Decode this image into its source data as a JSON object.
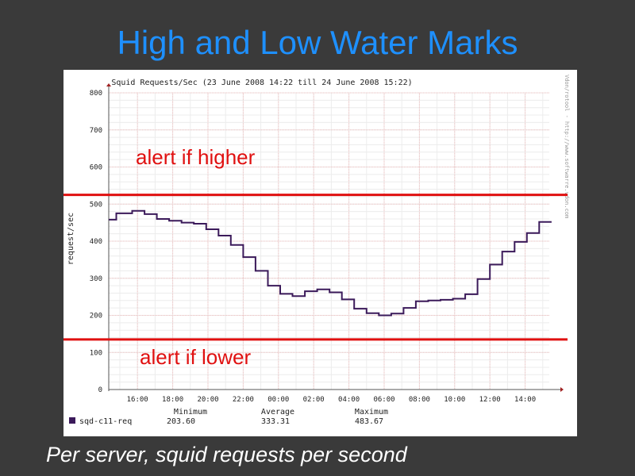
{
  "slide": {
    "title": "High and Low Water Marks",
    "caption": "Per server, squid requests per second"
  },
  "annotations": {
    "high_label": "alert if higher",
    "low_label": "alert if lower",
    "high_value": 525,
    "low_value": 135,
    "line_color": "#e01010"
  },
  "chart_data": {
    "type": "line",
    "title": "Squid Requests/Sec (23 June 2008  14:22 till 24 June 2008  15:22)",
    "ylabel": "request/sec",
    "xlabel": "",
    "side_text": "Vdon/rotool - http://www.softwarre.vdon.com",
    "ylim": [
      0,
      800
    ],
    "yticks": [
      0,
      100,
      200,
      300,
      400,
      500,
      600,
      700,
      800
    ],
    "ytick_labels": [
      "0",
      "100",
      "200",
      "300",
      "400",
      "500",
      "600",
      "700",
      "800"
    ],
    "xlim": [
      14.37,
      39.37
    ],
    "xticks": [
      16,
      18,
      20,
      22,
      24,
      26,
      28,
      30,
      32,
      34,
      36,
      38
    ],
    "xtick_labels": [
      "16:00",
      "18:00",
      "20:00",
      "22:00",
      "00:00",
      "02:00",
      "04:00",
      "06:00",
      "08:00",
      "10:00",
      "12:00",
      "14:00"
    ],
    "grid": true,
    "series": [
      {
        "name": "sqd-c11-req",
        "color": "#3b1a5a",
        "x": [
          14.37,
          14.8,
          15.7,
          16.4,
          17.1,
          17.8,
          18.5,
          19.2,
          19.9,
          20.6,
          21.3,
          22.0,
          22.7,
          23.4,
          24.1,
          24.8,
          25.5,
          26.2,
          26.9,
          27.6,
          28.3,
          29.0,
          29.7,
          30.4,
          31.1,
          31.8,
          32.5,
          33.2,
          33.9,
          34.6,
          35.3,
          36.0,
          36.7,
          37.4,
          38.1,
          38.8
        ],
        "values": [
          458,
          475,
          482,
          473,
          460,
          455,
          450,
          447,
          432,
          415,
          390,
          357,
          320,
          280,
          258,
          252,
          265,
          270,
          262,
          243,
          218,
          206,
          200,
          205,
          220,
          238,
          240,
          242,
          245,
          257,
          298,
          337,
          372,
          398,
          422,
          452
        ]
      }
    ],
    "legend": {
      "entry": "sqd-c11-req",
      "headers": [
        "Minimum",
        "Average",
        "Maximum"
      ],
      "values": [
        "203.60",
        "333.31",
        "483.67"
      ]
    }
  }
}
